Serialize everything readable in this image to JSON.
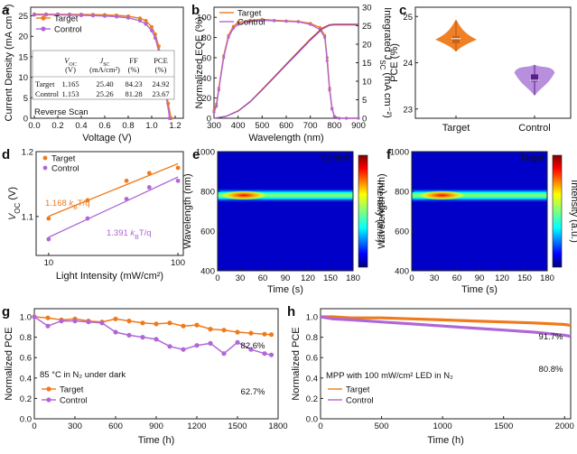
{
  "colors": {
    "target": "#F07A1A",
    "control": "#B067D6"
  },
  "panels": {
    "a": {
      "label": "a",
      "xlabel": "Voltage (V)",
      "ylabel": "Current Density (mA cm⁻²)",
      "xticks": [
        "0.0",
        "0.2",
        "0.4",
        "0.6",
        "0.8",
        "1.0",
        "1.2"
      ],
      "yticks": [
        "0",
        "5",
        "10",
        "15",
        "20",
        "25"
      ],
      "legend": [
        "Target",
        "Control"
      ],
      "note": "Reverse Scan",
      "table": {
        "headers": [
          "V",
          "J",
          "FF",
          "PCE"
        ],
        "subs": [
          "OC",
          "SC",
          "",
          ""
        ],
        "units": [
          "(V)",
          "(mA/cm²)",
          "(%)",
          "(%)"
        ],
        "rows": [
          {
            "name": "Target",
            "cells": [
              "1.165",
              "25.40",
              "84.23",
              "24.92"
            ]
          },
          {
            "name": "Control",
            "cells": [
              "1.153",
              "25.26",
              "81.28",
              "23.67"
            ]
          }
        ]
      }
    },
    "b": {
      "label": "b",
      "xlabel": "Wavelength (nm)",
      "ylabel": "Normalized EQE (%)",
      "ylabel2": "Integrated J",
      "ylabel2_sub": "SC",
      "ylabel2_unit": " (mA cm⁻²)",
      "xticks": [
        "300",
        "400",
        "500",
        "600",
        "700",
        "800",
        "900"
      ],
      "yticks": [
        "0",
        "20",
        "40",
        "60",
        "80",
        "100"
      ],
      "y2ticks": [
        "0",
        "5",
        "10",
        "15",
        "20",
        "25",
        "30"
      ],
      "legend": [
        "Target",
        "Control"
      ]
    },
    "c": {
      "label": "c",
      "ylabel": "PCE (%)",
      "yticks": [
        "23",
        "24",
        "25"
      ],
      "categories": [
        "Target",
        "Control"
      ]
    },
    "d": {
      "label": "d",
      "xlabel": "Light Intensity (mW/cm²)",
      "ylabel": "V",
      "ylabel_sub": "OC",
      "ylabel_unit": " (V)",
      "xticks": [
        "10",
        "100"
      ],
      "yticks": [
        "1.1",
        "1.2"
      ],
      "legend": [
        "Target",
        "Control"
      ],
      "fit_target_num": "1.168 ",
      "fit_target_k": "k",
      "fit_target_sub": "B",
      "fit_target_unit": "T/q",
      "fit_control_num": "1.391 ",
      "fit_control_k": "k",
      "fit_control_sub": "B",
      "fit_control_unit": "T/q"
    },
    "e": {
      "label": "e",
      "tag": "Control",
      "xlabel": "Time (s)",
      "ylabel": "Wavelength (nm)",
      "cbar": "Intensity (a.u.)",
      "xticks": [
        "0",
        "30",
        "60",
        "90",
        "120",
        "150",
        "180"
      ],
      "yticks": [
        "400",
        "600",
        "800",
        "1000"
      ]
    },
    "f": {
      "label": "f",
      "tag": "Target",
      "xlabel": "Time (s)",
      "ylabel": "Wavelength (nm)",
      "cbar": "Intensity (a.u.)",
      "xticks": [
        "0",
        "30",
        "60",
        "90",
        "120",
        "150",
        "180"
      ],
      "yticks": [
        "400",
        "600",
        "800",
        "1000"
      ]
    },
    "g": {
      "label": "g",
      "xlabel": "Time (h)",
      "ylabel": "Normalized PCE",
      "xticks": [
        "0",
        "300",
        "600",
        "900",
        "1200",
        "1500",
        "1800"
      ],
      "yticks": [
        "0.0",
        "0.2",
        "0.4",
        "0.6",
        "0.8",
        "1.0"
      ],
      "note": "85 °C in N₂ under dark",
      "legend": [
        "Target",
        "Control"
      ],
      "end_target": "82.6%",
      "end_control": "62.7%"
    },
    "h": {
      "label": "h",
      "xlabel": "Time (h)",
      "ylabel": "Normalized PCE",
      "xticks": [
        "0",
        "500",
        "1000",
        "1500",
        "2000"
      ],
      "yticks": [
        "0.0",
        "0.2",
        "0.4",
        "0.6",
        "0.8",
        "1.0"
      ],
      "note": "MPP with 100 mW/cm² LED in N₂",
      "legend": [
        "Target",
        "Control"
      ],
      "end_target": "91.7%",
      "end_control": "80.8%"
    }
  },
  "chart_data": [
    {
      "panel": "a",
      "type": "line",
      "xlim": [
        0,
        1.2
      ],
      "ylim": [
        0,
        26
      ],
      "series": [
        {
          "name": "Target",
          "x": [
            0,
            0.1,
            0.2,
            0.3,
            0.4,
            0.5,
            0.6,
            0.7,
            0.8,
            0.9,
            0.95,
            1.0,
            1.03,
            1.06,
            1.09,
            1.12,
            1.14,
            1.165
          ],
          "y": [
            25.4,
            25.39,
            25.38,
            25.36,
            25.33,
            25.3,
            25.22,
            25.12,
            24.9,
            24.4,
            23.8,
            22.3,
            20.5,
            17.6,
            13.0,
            7.6,
            3.6,
            0
          ]
        },
        {
          "name": "Control",
          "x": [
            0,
            0.1,
            0.2,
            0.3,
            0.4,
            0.5,
            0.6,
            0.7,
            0.8,
            0.9,
            0.95,
            1.0,
            1.03,
            1.06,
            1.09,
            1.12,
            1.153
          ],
          "y": [
            25.26,
            25.24,
            25.22,
            25.18,
            25.12,
            25.05,
            24.94,
            24.78,
            24.5,
            23.8,
            23.0,
            21.4,
            19.6,
            16.3,
            11.8,
            6.0,
            0
          ]
        }
      ]
    },
    {
      "panel": "b",
      "type": "line",
      "xlim": [
        300,
        900
      ],
      "ylim": [
        0,
        110
      ],
      "y2lim": [
        0,
        30
      ],
      "series": [
        {
          "name": "Target EQE",
          "x": [
            300,
            310,
            320,
            340,
            360,
            380,
            400,
            450,
            500,
            550,
            600,
            650,
            700,
            740,
            760,
            770,
            780,
            790,
            800,
            820,
            850,
            900
          ],
          "y": [
            8,
            14,
            30,
            62,
            82,
            91,
            95,
            97,
            98,
            97,
            96.5,
            96,
            94,
            90,
            82,
            60,
            30,
            10,
            2,
            0,
            0,
            0
          ]
        },
        {
          "name": "Control EQE",
          "x": [
            300,
            310,
            320,
            340,
            360,
            380,
            400,
            450,
            500,
            550,
            600,
            650,
            700,
            740,
            760,
            770,
            780,
            790,
            800,
            820,
            850,
            900
          ],
          "y": [
            6,
            12,
            28,
            60,
            80,
            89,
            93,
            96,
            97,
            96.5,
            96,
            95.5,
            93,
            88,
            80,
            57,
            28,
            9,
            2,
            0,
            0,
            0
          ]
        },
        {
          "name": "Target JSC",
          "x": [
            300,
            350,
            400,
            450,
            500,
            550,
            600,
            650,
            700,
            750,
            780,
            800,
            900
          ],
          "y": [
            0,
            0.5,
            2.0,
            4.5,
            7.8,
            11.2,
            14.6,
            18.0,
            21.4,
            24.4,
            25.3,
            25.4,
            25.4
          ]
        },
        {
          "name": "Control JSC",
          "x": [
            300,
            350,
            400,
            450,
            500,
            550,
            600,
            650,
            700,
            750,
            780,
            800,
            900
          ],
          "y": [
            0,
            0.5,
            1.9,
            4.4,
            7.6,
            11.0,
            14.4,
            17.7,
            21.1,
            24.1,
            25.1,
            25.2,
            25.2
          ]
        }
      ]
    },
    {
      "panel": "c",
      "type": "violin",
      "ylim": [
        22.8,
        25.2
      ],
      "series": [
        {
          "name": "Target",
          "min": 24.25,
          "max": 24.92,
          "median": 24.5,
          "mean": 24.52
        },
        {
          "name": "Control",
          "min": 23.3,
          "max": 23.95,
          "median": 23.67,
          "mean": 23.62
        }
      ]
    },
    {
      "panel": "d",
      "type": "scatter",
      "xscale": "log",
      "xlim": [
        8,
        110
      ],
      "ylim": [
        1.04,
        1.2
      ],
      "series": [
        {
          "name": "Target",
          "x": [
            10,
            20,
            40,
            60,
            100
          ],
          "y": [
            1.097,
            1.125,
            1.155,
            1.167,
            1.175
          ]
        },
        {
          "name": "Control",
          "x": [
            10,
            20,
            40,
            60,
            100
          ],
          "y": [
            1.065,
            1.097,
            1.127,
            1.145,
            1.155
          ]
        }
      ]
    },
    {
      "panel": "e",
      "type": "heatmap",
      "xlim": [
        0,
        180
      ],
      "ylim": [
        400,
        1000
      ],
      "peak_nm": 780,
      "peak_max_time_s": 35
    },
    {
      "panel": "f",
      "type": "heatmap",
      "xlim": [
        0,
        180
      ],
      "ylim": [
        400,
        1000
      ],
      "peak_nm": 780,
      "peak_max_time_s": 40
    },
    {
      "panel": "g",
      "type": "line",
      "xlim": [
        0,
        1800
      ],
      "ylim": [
        0,
        1.08
      ],
      "series": [
        {
          "name": "Target",
          "x": [
            0,
            100,
            200,
            300,
            400,
            500,
            600,
            700,
            800,
            900,
            1000,
            1100,
            1200,
            1300,
            1400,
            1500,
            1600,
            1700,
            1750
          ],
          "y": [
            1.0,
            0.99,
            0.97,
            0.98,
            0.96,
            0.95,
            0.98,
            0.96,
            0.94,
            0.93,
            0.94,
            0.91,
            0.92,
            0.88,
            0.87,
            0.85,
            0.84,
            0.83,
            0.826
          ]
        },
        {
          "name": "Control",
          "x": [
            0,
            100,
            200,
            300,
            400,
            500,
            600,
            700,
            800,
            900,
            1000,
            1100,
            1200,
            1300,
            1400,
            1500,
            1600,
            1700,
            1750
          ],
          "y": [
            1.0,
            0.91,
            0.96,
            0.96,
            0.95,
            0.94,
            0.85,
            0.82,
            0.8,
            0.78,
            0.71,
            0.68,
            0.72,
            0.74,
            0.64,
            0.75,
            0.68,
            0.64,
            0.627
          ]
        }
      ]
    },
    {
      "panel": "h",
      "type": "line",
      "xlim": [
        0,
        2050
      ],
      "ylim": [
        0,
        1.08
      ],
      "series": [
        {
          "name": "Target",
          "x": [
            0,
            100,
            250,
            500,
            750,
            1000,
            1250,
            1500,
            1750,
            2000,
            2050
          ],
          "y": [
            1.0,
            1.0,
            0.99,
            0.99,
            0.98,
            0.97,
            0.96,
            0.95,
            0.94,
            0.925,
            0.917
          ]
        },
        {
          "name": "Control",
          "x": [
            0,
            100,
            250,
            500,
            750,
            1000,
            1250,
            1500,
            1750,
            2000,
            2050
          ],
          "y": [
            1.0,
            0.98,
            0.97,
            0.95,
            0.93,
            0.91,
            0.89,
            0.87,
            0.85,
            0.82,
            0.808
          ]
        }
      ]
    }
  ]
}
